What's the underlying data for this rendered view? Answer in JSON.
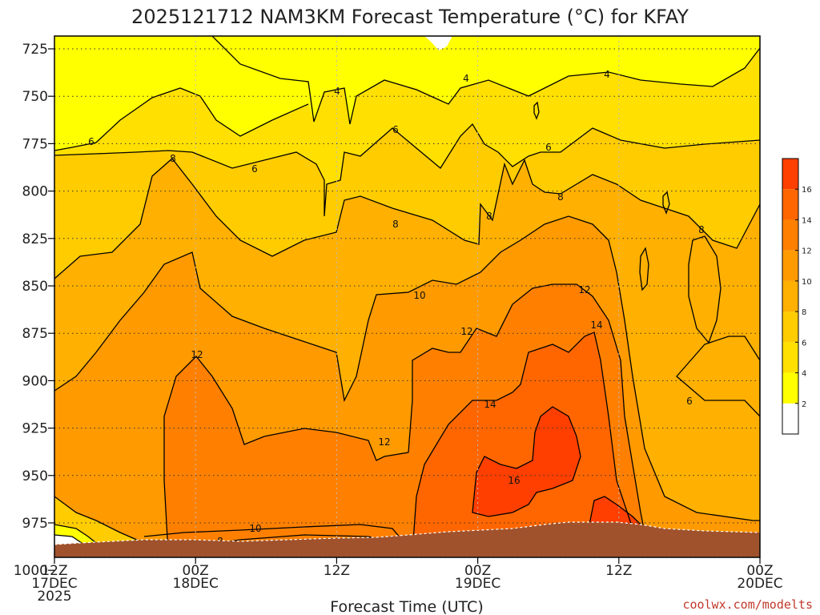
{
  "chart_data": {
    "type": "contour",
    "title": "2025121712 NAM3KM Forecast Temperature (°C) for KFAY",
    "xlabel": "Forecast Time (UTC)",
    "ylabel": "",
    "y_reversed": true,
    "y_ticks": [
      "725",
      "750",
      "775",
      "800",
      "825",
      "850",
      "875",
      "900",
      "925",
      "950",
      "975",
      "1000"
    ],
    "x_ticks": [
      {
        "hour": 0,
        "lines": [
          "12Z",
          "17DEC",
          "2025"
        ]
      },
      {
        "hour": 12,
        "lines": [
          "00Z",
          "18DEC"
        ]
      },
      {
        "hour": 24,
        "lines": [
          "12Z"
        ]
      },
      {
        "hour": 36,
        "lines": [
          "00Z",
          "19DEC"
        ]
      },
      {
        "hour": 48,
        "lines": [
          "12Z"
        ]
      },
      {
        "hour": 60,
        "lines": [
          "00Z",
          "20DEC"
        ]
      }
    ],
    "colorbar": {
      "labels": [
        "2",
        "4",
        "6",
        "8",
        "10",
        "12",
        "14",
        "16"
      ],
      "colors": [
        "#ffffff",
        "#ffff00",
        "#ffe000",
        "#ffcc00",
        "#ffb000",
        "#ff9a00",
        "#ff8000",
        "#ff6600",
        "#ff3f00"
      ]
    },
    "contour_labels": [
      "4",
      "4",
      "4",
      "6",
      "6",
      "6",
      "6",
      "6",
      "8",
      "8",
      "8",
      "8",
      "8",
      "8",
      "10",
      "10",
      "12",
      "12",
      "12",
      "12",
      "14",
      "14",
      "16"
    ],
    "grid": true
  },
  "credit": "coolwx.com/modelts",
  "colors": {
    "ground": "#a0522d",
    "contour_line": "#000000"
  }
}
